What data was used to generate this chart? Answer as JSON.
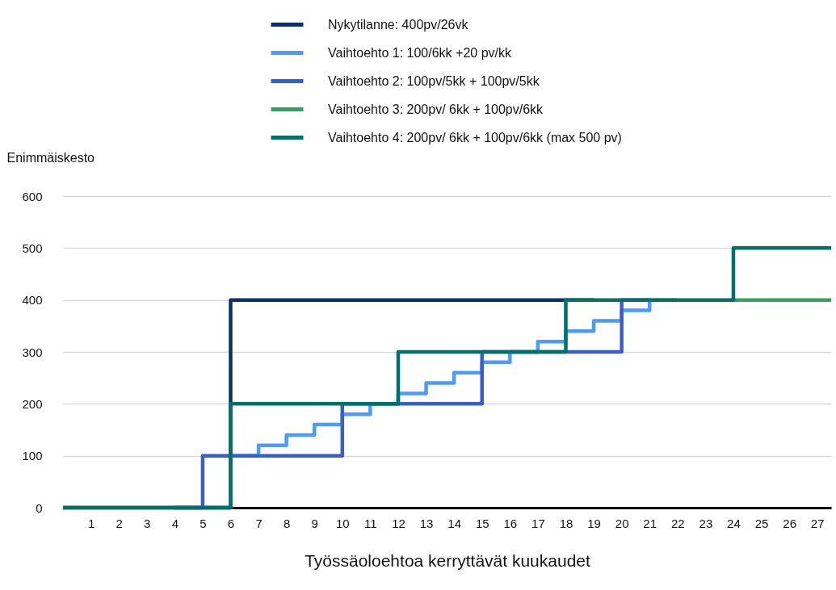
{
  "chart_data": {
    "type": "step",
    "xlabel": "Työssäoloehtoa kerryttävät kuukaudet",
    "ylabel": "Enimmäiskesto",
    "x": [
      0,
      1,
      2,
      3,
      4,
      5,
      6,
      7,
      8,
      9,
      10,
      11,
      12,
      13,
      14,
      15,
      16,
      17,
      18,
      19,
      20,
      21,
      22,
      23,
      24,
      25,
      26,
      27,
      27.5
    ],
    "xlim": [
      0,
      27.5
    ],
    "xticks": [
      1,
      2,
      3,
      4,
      5,
      6,
      7,
      8,
      9,
      10,
      11,
      12,
      13,
      14,
      15,
      16,
      17,
      18,
      19,
      20,
      21,
      22,
      23,
      24,
      25,
      26,
      27
    ],
    "ylim": [
      0,
      600
    ],
    "yticks": [
      0,
      100,
      200,
      300,
      400,
      500,
      600
    ],
    "grid": "y",
    "legend": "top",
    "series": [
      {
        "name": "Nykytilanne: 400pv/26vk",
        "color": "#0b2f6b",
        "values": [
          0,
          0,
          0,
          0,
          0,
          0,
          400,
          400,
          400,
          400,
          400,
          400,
          400,
          400,
          400,
          400,
          400,
          400,
          400,
          400,
          null,
          null,
          null,
          null,
          null,
          null,
          null,
          null,
          null
        ]
      },
      {
        "name": "Vaihtoehto 1: 100/6kk +20 pv/kk",
        "color": "#4a9bff",
        "values": [
          null,
          null,
          null,
          null,
          0,
          0,
          100,
          120,
          140,
          160,
          180,
          200,
          220,
          240,
          260,
          280,
          300,
          320,
          340,
          360,
          380,
          400,
          400,
          null,
          null,
          null,
          null,
          null,
          null
        ]
      },
      {
        "name": "Vaihtoehto 2: 100pv/5kk + 100pv/5kk",
        "color": "#3a5fc4",
        "values": [
          null,
          null,
          null,
          null,
          0,
          100,
          100,
          100,
          100,
          100,
          200,
          200,
          200,
          200,
          200,
          300,
          300,
          300,
          300,
          300,
          400,
          400,
          null,
          null,
          null,
          null,
          null,
          null,
          null
        ]
      },
      {
        "name": "Vaihtoehto 3: 200pv/ 6kk + 100pv/6kk",
        "color": "#2ea55a",
        "values": [
          null,
          null,
          null,
          null,
          null,
          null,
          null,
          null,
          null,
          null,
          null,
          null,
          null,
          null,
          null,
          null,
          null,
          null,
          null,
          null,
          null,
          null,
          null,
          null,
          400,
          400,
          400,
          400,
          400
        ]
      },
      {
        "name": "Vaihtoehto 4: 200pv/ 6kk + 100pv/6kk (max 500 pv)",
        "color": "#00706b",
        "values": [
          0,
          0,
          0,
          0,
          0,
          0,
          200,
          200,
          200,
          200,
          200,
          200,
          300,
          300,
          300,
          300,
          300,
          300,
          400,
          400,
          400,
          400,
          400,
          400,
          500,
          500,
          500,
          500,
          500
        ]
      }
    ]
  }
}
